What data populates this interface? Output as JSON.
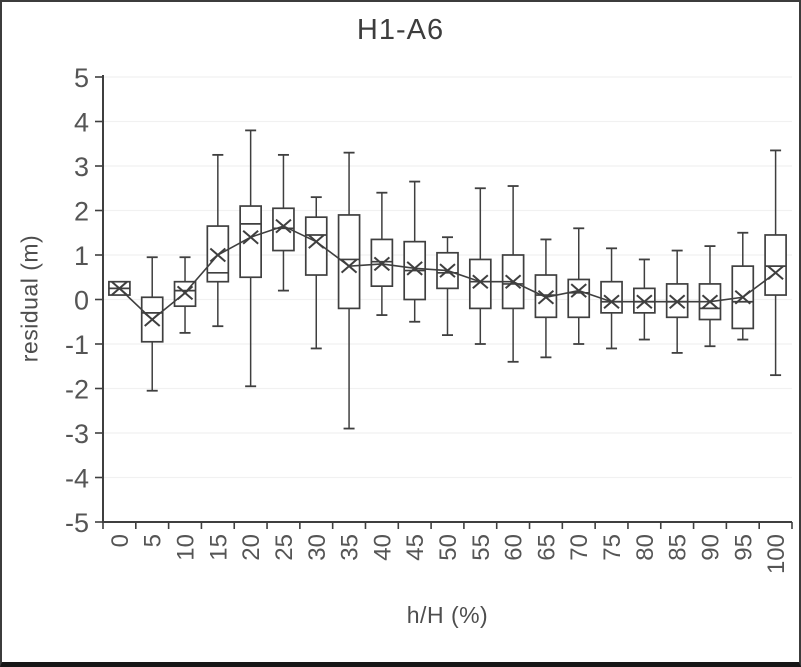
{
  "chart_data": {
    "type": "box",
    "title": "H1-A6",
    "xlabel": "h/H (%)",
    "ylabel": "residual (m)",
    "ylim": [
      -5,
      5
    ],
    "ytick_step": 1,
    "y_ticks": [
      5,
      4,
      3,
      2,
      1,
      0,
      -1,
      -2,
      -3,
      -4,
      -5
    ],
    "grid": "horizontal, very faint",
    "legend": "none",
    "mean_marker": "x, connected by line",
    "categories": [
      "0",
      "5",
      "10",
      "15",
      "20",
      "25",
      "30",
      "35",
      "40",
      "45",
      "50",
      "55",
      "60",
      "65",
      "70",
      "75",
      "80",
      "85",
      "90",
      "95",
      "100"
    ],
    "boxes": [
      {
        "category": "0",
        "whisker_low": 0.1,
        "q1": 0.1,
        "median": 0.25,
        "q3": 0.4,
        "whisker_high": 0.4,
        "mean": 0.25
      },
      {
        "category": "5",
        "whisker_low": -2.05,
        "q1": -0.95,
        "median": -0.3,
        "q3": 0.05,
        "whisker_high": 0.95,
        "mean": -0.45
      },
      {
        "category": "10",
        "whisker_low": -0.75,
        "q1": -0.15,
        "median": 0.2,
        "q3": 0.4,
        "whisker_high": 0.95,
        "mean": 0.15
      },
      {
        "category": "15",
        "whisker_low": -0.6,
        "q1": 0.4,
        "median": 0.6,
        "q3": 1.65,
        "whisker_high": 3.25,
        "mean": 1.0
      },
      {
        "category": "20",
        "whisker_low": -1.95,
        "q1": 0.5,
        "median": 1.7,
        "q3": 2.1,
        "whisker_high": 3.8,
        "mean": 1.4
      },
      {
        "category": "25",
        "whisker_low": 0.2,
        "q1": 1.1,
        "median": 1.6,
        "q3": 2.05,
        "whisker_high": 3.25,
        "mean": 1.65
      },
      {
        "category": "30",
        "whisker_low": -1.1,
        "q1": 0.55,
        "median": 1.45,
        "q3": 1.85,
        "whisker_high": 2.3,
        "mean": 1.3
      },
      {
        "category": "35",
        "whisker_low": -2.9,
        "q1": -0.2,
        "median": 0.9,
        "q3": 1.9,
        "whisker_high": 3.3,
        "mean": 0.75
      },
      {
        "category": "40",
        "whisker_low": -0.35,
        "q1": 0.3,
        "median": 0.85,
        "q3": 1.35,
        "whisker_high": 2.4,
        "mean": 0.8
      },
      {
        "category": "45",
        "whisker_low": -0.5,
        "q1": 0.0,
        "median": 0.65,
        "q3": 1.3,
        "whisker_high": 2.65,
        "mean": 0.7
      },
      {
        "category": "50",
        "whisker_low": -0.8,
        "q1": 0.25,
        "median": 0.6,
        "q3": 1.05,
        "whisker_high": 1.4,
        "mean": 0.65
      },
      {
        "category": "55",
        "whisker_low": -1.0,
        "q1": -0.2,
        "median": 0.4,
        "q3": 0.9,
        "whisker_high": 2.5,
        "mean": 0.4
      },
      {
        "category": "60",
        "whisker_low": -1.4,
        "q1": -0.2,
        "median": 0.35,
        "q3": 1.0,
        "whisker_high": 2.55,
        "mean": 0.4
      },
      {
        "category": "65",
        "whisker_low": -1.3,
        "q1": -0.4,
        "median": 0.1,
        "q3": 0.55,
        "whisker_high": 1.35,
        "mean": 0.05
      },
      {
        "category": "70",
        "whisker_low": -1.0,
        "q1": -0.4,
        "median": 0.15,
        "q3": 0.45,
        "whisker_high": 1.6,
        "mean": 0.2
      },
      {
        "category": "75",
        "whisker_low": -1.1,
        "q1": -0.3,
        "median": -0.05,
        "q3": 0.4,
        "whisker_high": 1.15,
        "mean": -0.05
      },
      {
        "category": "80",
        "whisker_low": -0.9,
        "q1": -0.3,
        "median": -0.05,
        "q3": 0.25,
        "whisker_high": 0.9,
        "mean": -0.05
      },
      {
        "category": "85",
        "whisker_low": -1.2,
        "q1": -0.4,
        "median": -0.05,
        "q3": 0.35,
        "whisker_high": 1.1,
        "mean": -0.05
      },
      {
        "category": "90",
        "whisker_low": -1.05,
        "q1": -0.45,
        "median": -0.2,
        "q3": 0.35,
        "whisker_high": 1.2,
        "mean": -0.05
      },
      {
        "category": "95",
        "whisker_low": -0.9,
        "q1": -0.65,
        "median": -0.05,
        "q3": 0.75,
        "whisker_high": 1.5,
        "mean": 0.05
      },
      {
        "category": "100",
        "whisker_low": -1.7,
        "q1": 0.1,
        "median": 0.75,
        "q3": 1.45,
        "whisker_high": 3.35,
        "mean": 0.6
      }
    ]
  },
  "style": {
    "stroke_color": "#3f3f3f",
    "label_color": "#555555",
    "title_color": "#3d3d3d",
    "grid_color": "#f1f1f1",
    "background": "#ffffff"
  }
}
